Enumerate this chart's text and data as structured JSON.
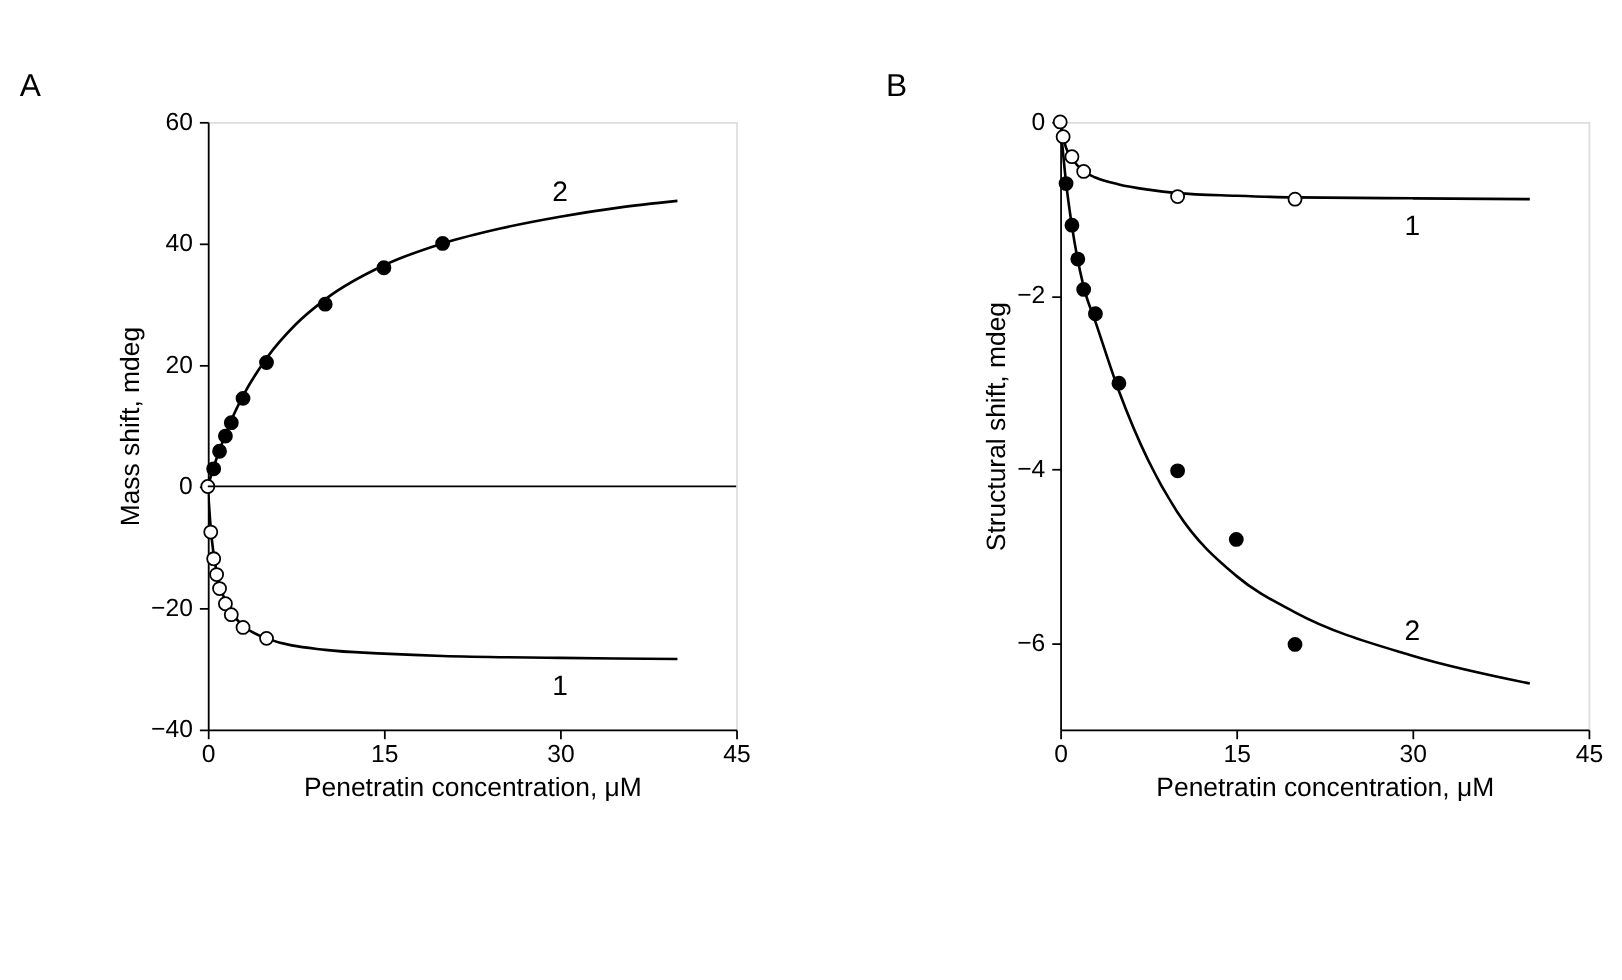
{
  "chart_data": [
    {
      "type": "scatter",
      "title": "A",
      "xlabel": "Penetratin concentration, μM",
      "ylabel": "Mass shift, mdeg",
      "xlim": [
        0,
        45
      ],
      "xticks": [
        0,
        15,
        30,
        45
      ],
      "ylim": [
        -40,
        60
      ],
      "yticks": [
        -40,
        -20,
        0,
        20,
        40,
        60
      ],
      "grid": false,
      "series": [
        {
          "type": "line",
          "name": "2",
          "color": "#000000",
          "x": [
            0,
            0.5,
            1,
            2,
            3,
            5,
            7.5,
            10,
            15,
            20,
            25,
            30,
            35,
            40
          ],
          "values": [
            0,
            3.2,
            6,
            10.9,
            14.9,
            21.1,
            26.7,
            30.8,
            36.4,
            40.0,
            42.5,
            44.4,
            45.9,
            47.0
          ]
        },
        {
          "type": "line",
          "name": "1",
          "color": "#000000",
          "x": [
            0,
            0.25,
            0.5,
            1,
            1.5,
            2,
            3,
            5,
            10,
            15,
            20,
            30,
            40
          ],
          "values": [
            0,
            -6.9,
            -11.2,
            -16.1,
            -18.9,
            -20.7,
            -22.9,
            -25.0,
            -26.9,
            -27.5,
            -27.9,
            -28.2,
            -28.4
          ]
        },
        {
          "marker": "circle",
          "color": "#000000",
          "x": [
            0.5,
            1,
            1.5,
            2,
            3,
            5,
            10,
            15,
            20
          ],
          "values": [
            2.9,
            5.8,
            8.3,
            10.5,
            14.5,
            20.4,
            30,
            36,
            40
          ]
        },
        {
          "marker": "circle",
          "color": "#ffffff",
          "x": [
            0,
            0.25,
            0.5,
            0.75,
            1,
            1.5,
            2,
            3,
            5
          ],
          "values": [
            0,
            -7.5,
            -11.9,
            -14.5,
            -16.8,
            -19.3,
            -21.1,
            -23.2,
            -25
          ]
        }
      ],
      "ref_lines": [
        {
          "axis": "y",
          "value": 0,
          "color": "#000000"
        }
      ]
    },
    {
      "type": "scatter",
      "title": "B",
      "xlabel": "Penetratin concentration, μM",
      "ylabel": "Structural shift, mdeg",
      "xlim": [
        0,
        45
      ],
      "xticks": [
        0,
        15,
        30,
        45
      ],
      "ylim": [
        -7,
        0
      ],
      "yticks": [
        -6,
        -4,
        -2,
        0
      ],
      "grid": false,
      "series": [
        {
          "type": "line",
          "name": "2",
          "color": "#000000",
          "x": [
            0,
            0.5,
            1,
            2,
            3,
            5,
            7.5,
            10,
            15,
            20,
            30,
            40
          ],
          "values": [
            0,
            -0.7,
            -1.2,
            -1.9,
            -2.3,
            -3.1,
            -3.9,
            -4.5,
            -5.23,
            -5.65,
            -6.15,
            -6.47
          ]
        },
        {
          "type": "line",
          "name": "1",
          "color": "#000000",
          "x": [
            0,
            0.5,
            1,
            2,
            3,
            5,
            7.5,
            10,
            15,
            20,
            30,
            40
          ],
          "values": [
            0,
            -0.3,
            -0.42,
            -0.57,
            -0.64,
            -0.72,
            -0.78,
            -0.82,
            -0.85,
            -0.87,
            -0.88,
            -0.89
          ]
        },
        {
          "marker": "circle",
          "color": "#000000",
          "x": [
            0.5,
            1,
            1.5,
            2,
            3,
            5,
            10,
            15,
            20
          ],
          "values": [
            -0.71,
            -1.19,
            -1.58,
            -1.93,
            -2.21,
            -3.01,
            -4.02,
            -4.81,
            -6.02
          ]
        },
        {
          "marker": "circle",
          "color": "#ffffff",
          "x": [
            0,
            0.25,
            1,
            2,
            10,
            20
          ],
          "values": [
            0,
            -0.17,
            -0.4,
            -0.57,
            -0.86,
            -0.89
          ]
        }
      ]
    }
  ]
}
